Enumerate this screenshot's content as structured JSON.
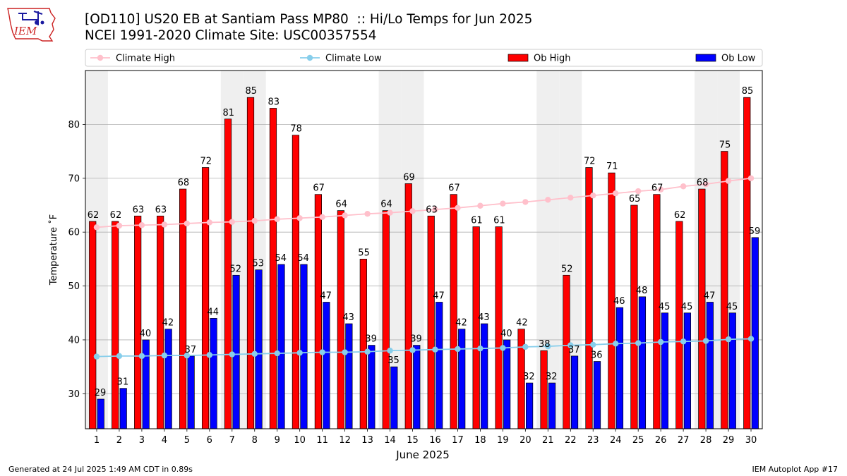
{
  "header": {
    "title_line1": "[OD110] US20 EB at Santiam Pass MP80  :: Hi/Lo Temps for Jun 2025",
    "title_line2": "NCEI 1991-2020 Climate Site: USC00357554",
    "logo_text": "IEM"
  },
  "footer": {
    "left": "Generated at 24 Jul 2025 1:49 AM CDT in 0.89s",
    "right": "IEM Autoplot App #17"
  },
  "colors": {
    "ob_high": "#ff0000",
    "ob_low": "#0000ff",
    "climate_high": "#ffc0cb",
    "climate_low": "#87ceeb",
    "weekend_shade": "#efefef",
    "logo_red": "#cc2222",
    "logo_blue": "#1a1aa0"
  },
  "chart_data": {
    "type": "bar",
    "xlabel": "June 2025",
    "ylabel": "Temperature ˚F",
    "ylim": [
      23.5,
      90
    ],
    "yticks": [
      30,
      40,
      50,
      60,
      70,
      80
    ],
    "grid": "horizontal",
    "legend_position": "top",
    "shaded_days": [
      1,
      7,
      8,
      14,
      15,
      21,
      22,
      28,
      29
    ],
    "categories": [
      "1",
      "2",
      "3",
      "4",
      "5",
      "6",
      "7",
      "8",
      "9",
      "10",
      "11",
      "12",
      "13",
      "14",
      "15",
      "16",
      "17",
      "18",
      "19",
      "20",
      "21",
      "22",
      "23",
      "24",
      "25",
      "26",
      "27",
      "28",
      "29",
      "30"
    ],
    "series": [
      {
        "name": "Climate High",
        "kind": "line",
        "values": [
          60.9,
          61.2,
          61.3,
          61.4,
          61.6,
          61.8,
          61.9,
          62.1,
          62.4,
          62.6,
          62.8,
          63.1,
          63.4,
          63.6,
          63.9,
          64.2,
          64.5,
          64.9,
          65.3,
          65.6,
          66.0,
          66.4,
          66.8,
          67.2,
          67.6,
          67.9,
          68.5,
          68.9,
          69.5,
          70.0
        ]
      },
      {
        "name": "Climate Low",
        "kind": "line",
        "values": [
          36.9,
          37.0,
          37.0,
          37.1,
          37.1,
          37.2,
          37.3,
          37.4,
          37.5,
          37.6,
          37.7,
          37.7,
          37.8,
          38.0,
          38.1,
          38.2,
          38.3,
          38.4,
          38.5,
          38.7,
          38.8,
          39.0,
          39.1,
          39.3,
          39.4,
          39.6,
          39.7,
          39.8,
          40.1,
          40.2
        ]
      },
      {
        "name": "Ob High",
        "kind": "bar",
        "values": [
          62,
          62,
          63,
          63,
          68,
          72,
          81,
          85,
          83,
          78,
          67,
          64,
          55,
          64,
          69,
          63,
          67,
          61,
          61,
          42,
          38,
          52,
          72,
          71,
          65,
          67,
          62,
          68,
          75,
          85
        ]
      },
      {
        "name": "Ob Low",
        "kind": "bar",
        "values": [
          29,
          31,
          40,
          42,
          37,
          44,
          52,
          53,
          54,
          54,
          47,
          43,
          39,
          35,
          39,
          47,
          42,
          43,
          40,
          32,
          32,
          37,
          36,
          46,
          48,
          45,
          45,
          47,
          45,
          59
        ]
      }
    ]
  }
}
